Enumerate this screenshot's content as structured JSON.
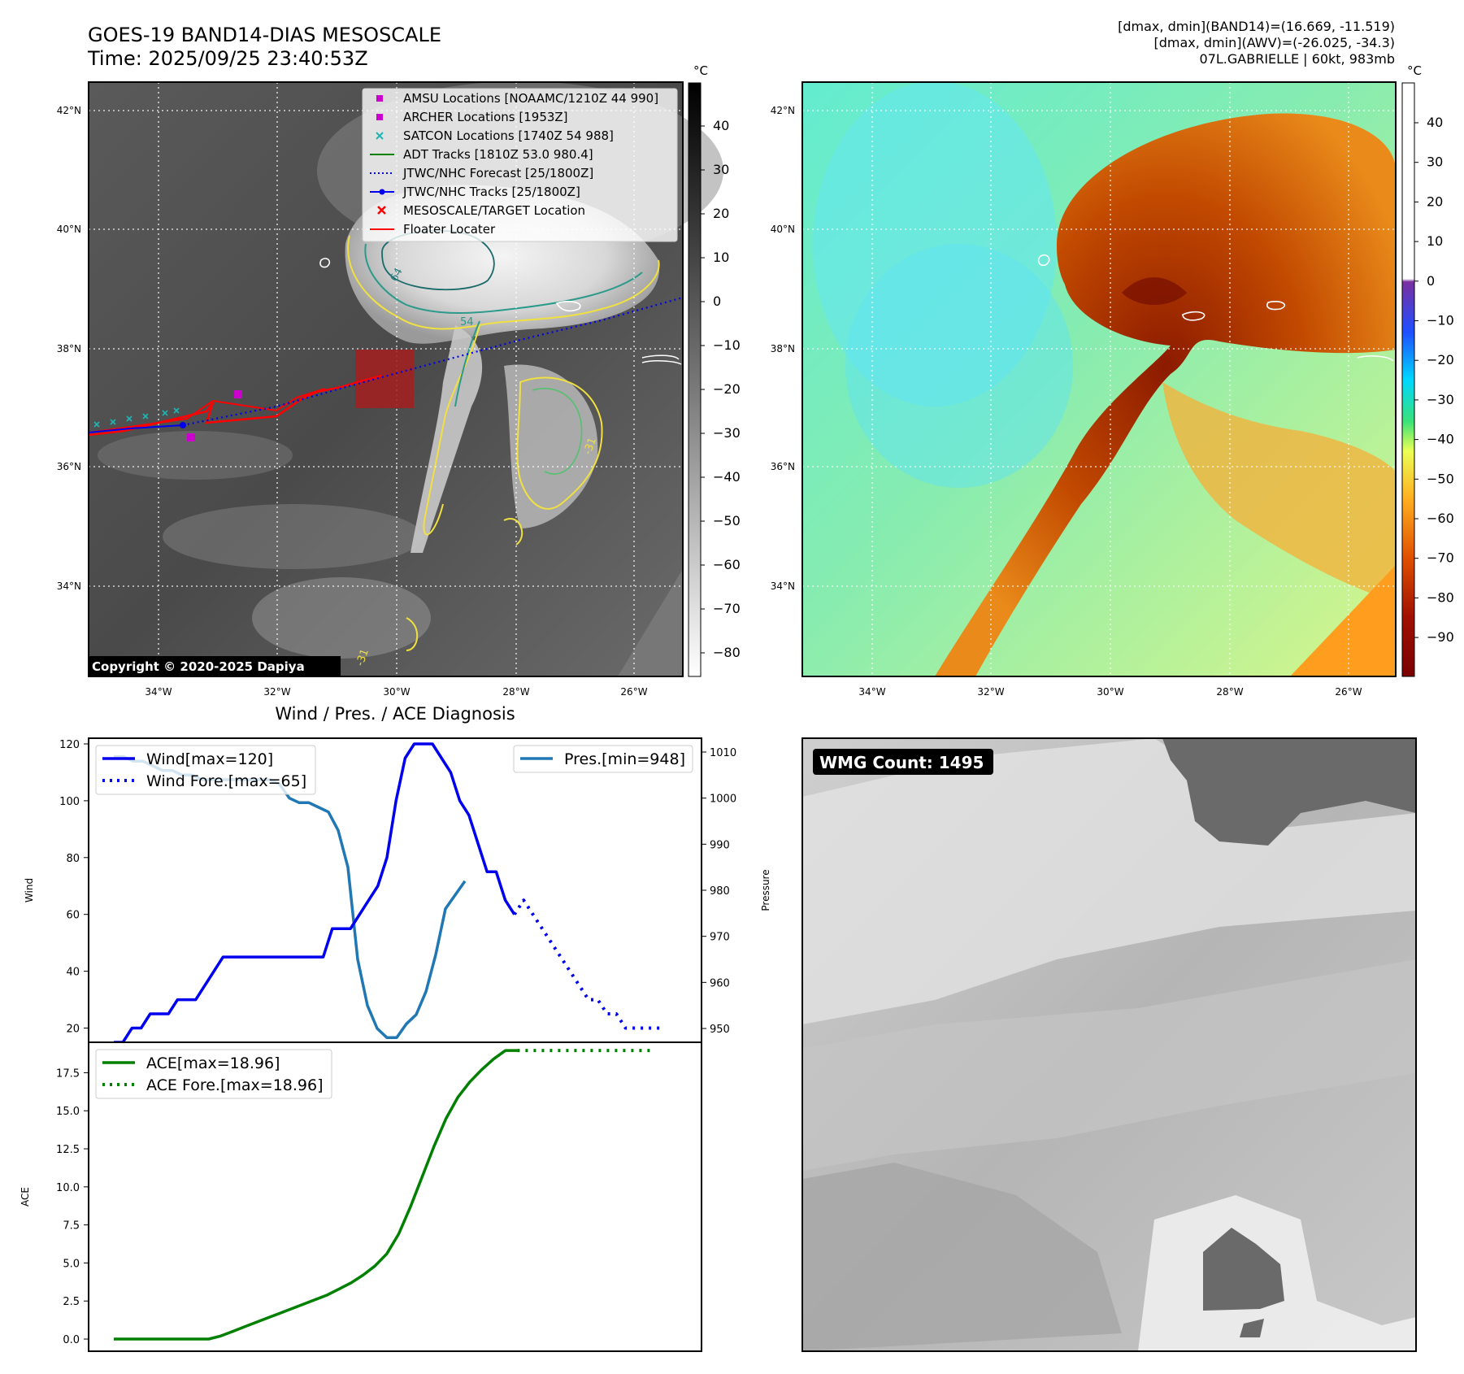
{
  "header": {
    "title_line1": "GOES-19 BAND14-DIAS MESOSCALE",
    "title_line2": "Time: 2025/09/25 23:40:53Z",
    "info_line1": "[dmax, dmin](BAND14)=(16.669, -11.519)",
    "info_line2": "[dmax, dmin](AWV)=(-26.025, -34.3)",
    "info_line3": "07L.GABRIELLE | 60kt, 983mb"
  },
  "ir_panel": {
    "lat_ticks": [
      "42°N",
      "40°N",
      "38°N",
      "36°N",
      "34°N"
    ],
    "lon_ticks": [
      "34°W",
      "32°W",
      "30°W",
      "28°W",
      "26°W"
    ],
    "copyright": "Copyright © 2020-2025 Dapiya",
    "contour_labels": [
      "64",
      "54",
      "-31",
      "-31"
    ],
    "colorbar": {
      "unit": "°C",
      "ticks": [
        "40",
        "30",
        "20",
        "10",
        "0",
        "−10",
        "−20",
        "−30",
        "−40",
        "−50",
        "−60",
        "−70",
        "−80"
      ]
    },
    "legend": [
      {
        "label": "AMSU Locations [NOAAMC/1210Z 44 990]",
        "color": "#cc00cc"
      },
      {
        "label": "ARCHER Locations [1953Z]",
        "color": "#cc00cc"
      },
      {
        "label": "SATCON Locations [1740Z 54 988]",
        "color": "#1fb5b5"
      },
      {
        "label": "ADT Tracks [1810Z 53.0 980.4]",
        "color": "#008000"
      },
      {
        "label": "JTWC/NHC Forecast [25/1800Z]",
        "color": "#0000ee"
      },
      {
        "label": "JTWC/NHC Tracks [25/1800Z]",
        "color": "#0000ee"
      },
      {
        "label": "MESOSCALE/TARGET Location",
        "color": "#ff0000"
      },
      {
        "label": "Floater Locater",
        "color": "#ff0000"
      }
    ]
  },
  "wv_panel": {
    "lat_ticks": [
      "42°N",
      "40°N",
      "38°N",
      "36°N",
      "34°N"
    ],
    "lon_ticks": [
      "34°W",
      "32°W",
      "30°W",
      "28°W",
      "26°W"
    ],
    "colorbar": {
      "unit": "°C",
      "ticks": [
        "40",
        "30",
        "20",
        "10",
        "0",
        "−10",
        "−20",
        "−30",
        "−40",
        "−50",
        "−60",
        "−70",
        "−80",
        "−90"
      ]
    }
  },
  "wmg_panel": {
    "badge": "WMG Count: 1495"
  },
  "chart_data": [
    {
      "type": "line",
      "title": "Wind / Pres. / ACE Diagnosis",
      "ylabel": "Wind",
      "y2label": "Pressure",
      "ylim": [
        15,
        122
      ],
      "y2lim": [
        947,
        1013
      ],
      "yticks": [
        20,
        40,
        60,
        80,
        100,
        120
      ],
      "y2ticks": [
        950,
        960,
        970,
        980,
        990,
        1000,
        1010
      ],
      "series": [
        {
          "name": "Wind[max=120]",
          "axis": "left",
          "color": "#0000ee",
          "style": "solid",
          "values": [
            15,
            15,
            20,
            20,
            25,
            25,
            25,
            30,
            30,
            30,
            35,
            40,
            45,
            45,
            45,
            45,
            45,
            45,
            45,
            45,
            45,
            45,
            45,
            45,
            55,
            55,
            55,
            60,
            65,
            70,
            80,
            100,
            115,
            120,
            120,
            120,
            115,
            110,
            100,
            95,
            85,
            75,
            75,
            65,
            60
          ]
        },
        {
          "name": "Wind Fore.[max=65]",
          "axis": "left",
          "color": "#0000ee",
          "style": "dotted",
          "values": [
            60,
            65,
            60,
            55,
            50,
            45,
            40,
            35,
            30,
            30,
            25,
            25,
            20,
            20,
            20,
            20,
            20
          ]
        },
        {
          "name": "Pres.[min=948]",
          "axis": "right",
          "color": "#1f77b4",
          "style": "solid",
          "values": [
            1009,
            1009,
            1008,
            1008,
            1007,
            1006,
            1006,
            1005,
            1005,
            1004,
            1004,
            1004,
            1004,
            1004,
            1004,
            1004,
            1004,
            1003,
            1000,
            999,
            999,
            998,
            997,
            993,
            985,
            965,
            955,
            950,
            948,
            948,
            951,
            953,
            958,
            966,
            976,
            979,
            982
          ]
        }
      ]
    },
    {
      "type": "line",
      "ylabel": "ACE",
      "ylim": [
        -0.8,
        19.5
      ],
      "yticks": [
        "0.0",
        "2.5",
        "5.0",
        "7.5",
        "10.0",
        "12.5",
        "15.0",
        "17.5"
      ],
      "series": [
        {
          "name": "ACE[max=18.96]",
          "color": "#008000",
          "style": "solid",
          "values": [
            0,
            0,
            0,
            0,
            0,
            0,
            0,
            0,
            0,
            0.2,
            0.5,
            0.8,
            1.1,
            1.4,
            1.7,
            2.0,
            2.3,
            2.6,
            2.9,
            3.3,
            3.7,
            4.2,
            4.8,
            5.6,
            6.9,
            8.7,
            10.7,
            12.7,
            14.5,
            15.9,
            16.9,
            17.7,
            18.4,
            18.96,
            18.96
          ]
        },
        {
          "name": "ACE Fore.[max=18.96]",
          "color": "#008000",
          "style": "dotted",
          "values": [
            18.96,
            18.96,
            18.96,
            18.96,
            18.96,
            18.96,
            18.96,
            18.96,
            18.96,
            18.96,
            18.96,
            18.96,
            18.96,
            18.96,
            18.96,
            18.96
          ]
        }
      ]
    }
  ]
}
